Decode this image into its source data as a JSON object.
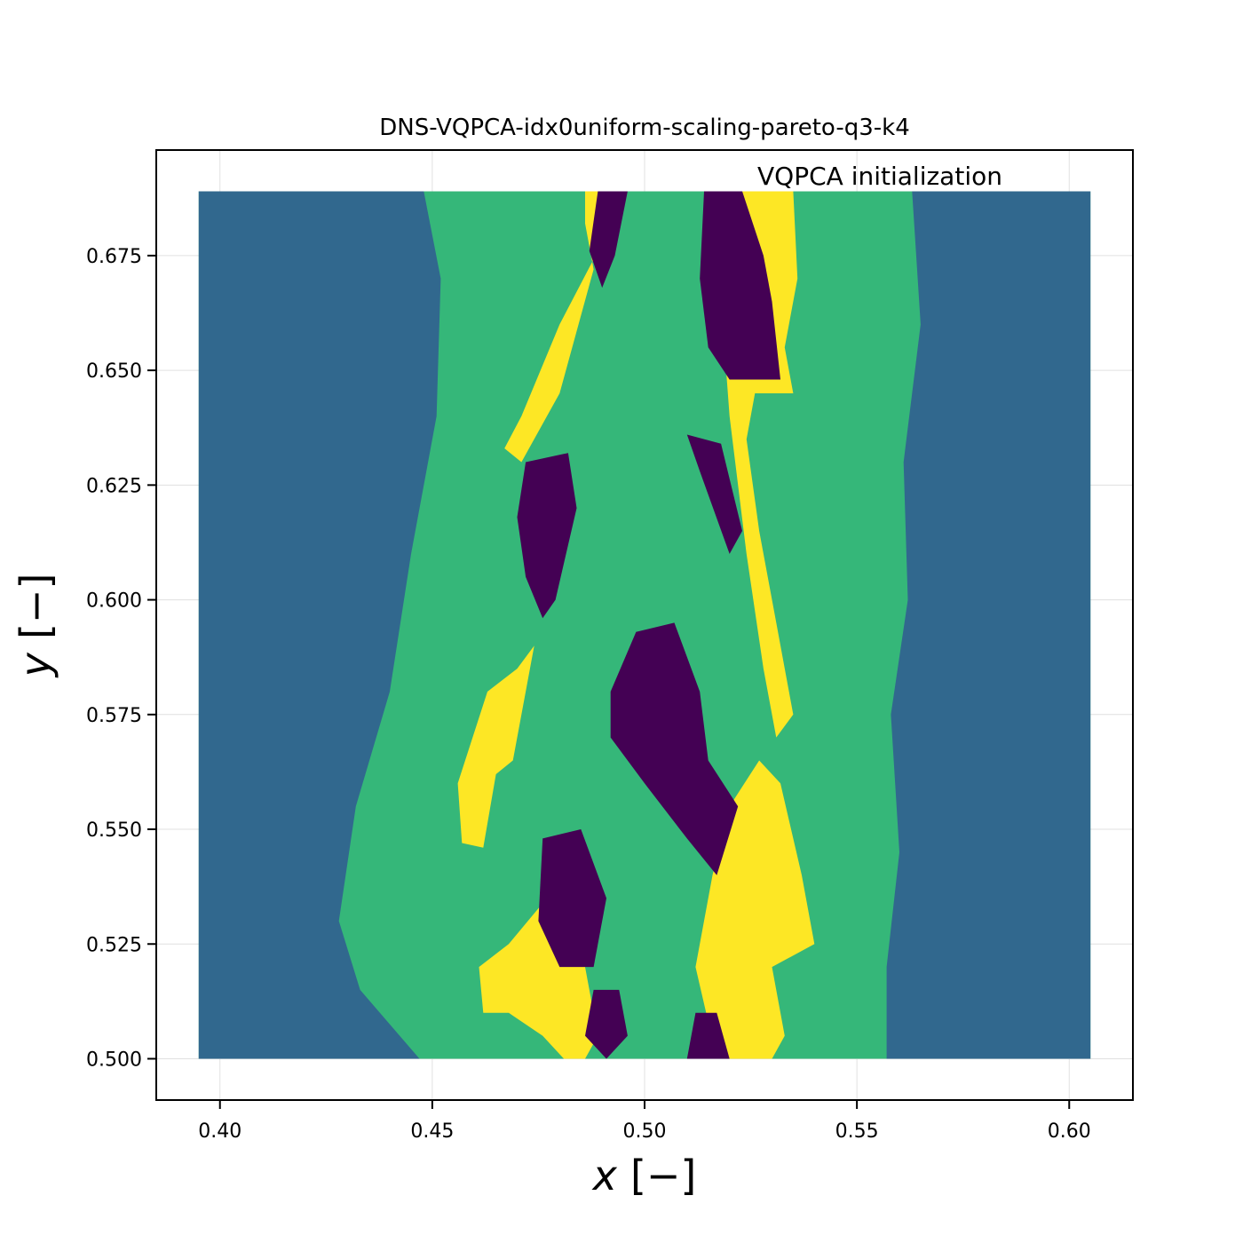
{
  "chart_data": {
    "type": "scatter",
    "title": "DNS-VQPCA-idx0uniform-scaling-pareto-q3-k4",
    "annotation": "VQPCA initialization",
    "xlabel_var": "x",
    "xlabel_unit": "[−]",
    "ylabel_var": "y",
    "ylabel_unit": "[−]",
    "xlim": [
      0.385,
      0.615
    ],
    "ylim": [
      0.491,
      0.698
    ],
    "xticks": [
      0.4,
      0.45,
      0.5,
      0.55,
      0.6
    ],
    "xtick_labels": [
      "0.40",
      "0.45",
      "0.50",
      "0.55",
      "0.60"
    ],
    "yticks": [
      0.5,
      0.525,
      0.55,
      0.575,
      0.6,
      0.625,
      0.65,
      0.675
    ],
    "ytick_labels": [
      "0.500",
      "0.525",
      "0.550",
      "0.575",
      "0.600",
      "0.625",
      "0.650",
      "0.675"
    ],
    "grid": true,
    "data_extent": {
      "x": [
        0.395,
        0.605
      ],
      "y": [
        0.5,
        0.689
      ]
    },
    "clusters": [
      {
        "id": 0,
        "color": "#440154",
        "description_x_range": [
          0.475,
          0.53
        ]
      },
      {
        "id": 1,
        "color": "#31688e",
        "description_x_range": [
          0.395,
          0.605
        ]
      },
      {
        "id": 2,
        "color": "#35b779",
        "description_x_range": [
          0.425,
          0.565
        ]
      },
      {
        "id": 3,
        "color": "#fde725",
        "description_x_range": [
          0.455,
          0.54
        ]
      }
    ],
    "regions": {
      "outer_left": [
        [
          0.395,
          0.5
        ],
        [
          0.395,
          0.689
        ],
        [
          0.448,
          0.689
        ],
        [
          0.452,
          0.67
        ],
        [
          0.451,
          0.64
        ],
        [
          0.445,
          0.61
        ],
        [
          0.44,
          0.58
        ],
        [
          0.432,
          0.555
        ],
        [
          0.428,
          0.53
        ],
        [
          0.433,
          0.515
        ],
        [
          0.447,
          0.5
        ]
      ],
      "outer_right": [
        [
          0.557,
          0.5
        ],
        [
          0.557,
          0.52
        ],
        [
          0.56,
          0.545
        ],
        [
          0.558,
          0.575
        ],
        [
          0.562,
          0.6
        ],
        [
          0.561,
          0.63
        ],
        [
          0.565,
          0.66
        ],
        [
          0.563,
          0.689
        ],
        [
          0.605,
          0.689
        ],
        [
          0.605,
          0.5
        ]
      ],
      "yellow": [
        [
          [
            0.486,
            0.689
          ],
          [
            0.493,
            0.689
          ],
          [
            0.489,
            0.676
          ],
          [
            0.48,
            0.66
          ],
          [
            0.471,
            0.64
          ],
          [
            0.467,
            0.633
          ],
          [
            0.471,
            0.63
          ],
          [
            0.48,
            0.645
          ],
          [
            0.488,
            0.672
          ],
          [
            0.486,
            0.682
          ]
        ],
        [
          [
            0.523,
            0.689
          ],
          [
            0.535,
            0.689
          ],
          [
            0.536,
            0.67
          ],
          [
            0.533,
            0.655
          ],
          [
            0.535,
            0.645
          ],
          [
            0.526,
            0.645
          ],
          [
            0.524,
            0.635
          ],
          [
            0.527,
            0.615
          ],
          [
            0.531,
            0.595
          ],
          [
            0.535,
            0.575
          ],
          [
            0.531,
            0.57
          ],
          [
            0.528,
            0.585
          ],
          [
            0.524,
            0.61
          ],
          [
            0.52,
            0.64
          ],
          [
            0.518,
            0.665
          ]
        ],
        [
          [
            0.47,
            0.585
          ],
          [
            0.474,
            0.59
          ],
          [
            0.469,
            0.565
          ],
          [
            0.465,
            0.562
          ],
          [
            0.462,
            0.546
          ],
          [
            0.457,
            0.547
          ],
          [
            0.456,
            0.56
          ],
          [
            0.463,
            0.58
          ]
        ],
        [
          [
            0.527,
            0.565
          ],
          [
            0.532,
            0.56
          ],
          [
            0.537,
            0.54
          ],
          [
            0.54,
            0.525
          ],
          [
            0.53,
            0.52
          ],
          [
            0.533,
            0.505
          ],
          [
            0.53,
            0.5
          ],
          [
            0.517,
            0.5
          ],
          [
            0.512,
            0.52
          ],
          [
            0.516,
            0.54
          ],
          [
            0.52,
            0.555
          ]
        ],
        [
          [
            0.477,
            0.535
          ],
          [
            0.482,
            0.535
          ],
          [
            0.486,
            0.52
          ],
          [
            0.489,
            0.505
          ],
          [
            0.486,
            0.5
          ],
          [
            0.481,
            0.5
          ],
          [
            0.476,
            0.505
          ],
          [
            0.468,
            0.51
          ],
          [
            0.462,
            0.51
          ],
          [
            0.461,
            0.52
          ],
          [
            0.468,
            0.525
          ]
        ]
      ],
      "purple": [
        [
          [
            0.489,
            0.689
          ],
          [
            0.496,
            0.689
          ],
          [
            0.493,
            0.675
          ],
          [
            0.49,
            0.668
          ],
          [
            0.487,
            0.676
          ]
        ],
        [
          [
            0.514,
            0.689
          ],
          [
            0.523,
            0.689
          ],
          [
            0.528,
            0.675
          ],
          [
            0.53,
            0.665
          ],
          [
            0.532,
            0.648
          ],
          [
            0.52,
            0.648
          ],
          [
            0.515,
            0.655
          ],
          [
            0.513,
            0.67
          ]
        ],
        [
          [
            0.472,
            0.63
          ],
          [
            0.482,
            0.632
          ],
          [
            0.484,
            0.62
          ],
          [
            0.479,
            0.6
          ],
          [
            0.476,
            0.596
          ],
          [
            0.472,
            0.605
          ],
          [
            0.47,
            0.618
          ]
        ],
        [
          [
            0.51,
            0.636
          ],
          [
            0.518,
            0.634
          ],
          [
            0.523,
            0.615
          ],
          [
            0.52,
            0.61
          ],
          [
            0.513,
            0.628
          ]
        ],
        [
          [
            0.492,
            0.58
          ],
          [
            0.498,
            0.593
          ],
          [
            0.507,
            0.595
          ],
          [
            0.513,
            0.58
          ],
          [
            0.515,
            0.565
          ],
          [
            0.522,
            0.555
          ],
          [
            0.517,
            0.54
          ],
          [
            0.51,
            0.548
          ],
          [
            0.5,
            0.56
          ],
          [
            0.492,
            0.57
          ]
        ],
        [
          [
            0.476,
            0.548
          ],
          [
            0.485,
            0.55
          ],
          [
            0.491,
            0.535
          ],
          [
            0.488,
            0.52
          ],
          [
            0.48,
            0.52
          ],
          [
            0.475,
            0.53
          ]
        ],
        [
          [
            0.488,
            0.515
          ],
          [
            0.494,
            0.515
          ],
          [
            0.496,
            0.505
          ],
          [
            0.491,
            0.5
          ],
          [
            0.486,
            0.505
          ]
        ],
        [
          [
            0.512,
            0.51
          ],
          [
            0.517,
            0.51
          ],
          [
            0.52,
            0.5
          ],
          [
            0.51,
            0.5
          ]
        ]
      ]
    }
  }
}
